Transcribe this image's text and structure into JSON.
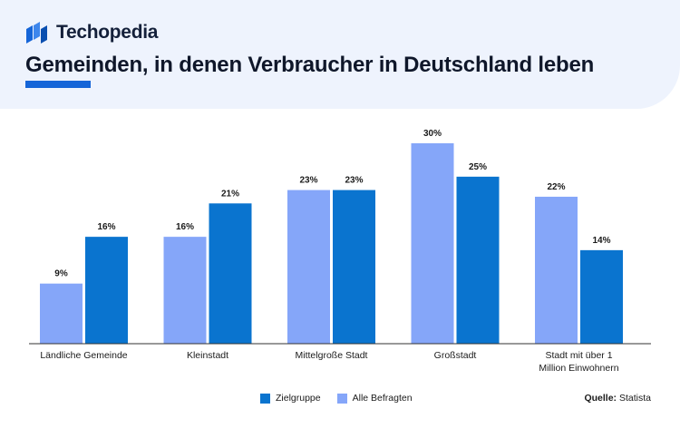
{
  "brand": {
    "name": "Techopedia"
  },
  "title": "Gemeinden, in denen Verbraucher in Deutschland leben",
  "source": {
    "label": "Quelle:",
    "value": "Statista"
  },
  "colors": {
    "zielgruppe": "#0a74cf",
    "alle_befragten": "#85a6f9",
    "accent": "#1565d8",
    "header_bg": "#eef3fd"
  },
  "chart_data": {
    "type": "bar",
    "categories": [
      "Ländliche Gemeinde",
      "Kleinstadt",
      "Mittelgroße Stadt",
      "Großstadt",
      "Stadt mit über 1 Million Einwohnern"
    ],
    "series": [
      {
        "name": "Alle Befragten",
        "values": [
          9,
          16,
          23,
          30,
          22
        ],
        "labels": [
          "9%",
          "16%",
          "23%",
          "30%",
          "22%"
        ],
        "color": "#85a6f9"
      },
      {
        "name": "Zielgruppe",
        "values": [
          16,
          21,
          23,
          25,
          14
        ],
        "labels": [
          "16%",
          "21%",
          "23%",
          "25%",
          "14%"
        ],
        "color": "#0a74cf"
      }
    ],
    "legend": [
      {
        "name": "Zielgruppe",
        "color": "#0a74cf"
      },
      {
        "name": "Alle Befragten",
        "color": "#85a6f9"
      }
    ],
    "ylim": [
      0,
      30
    ],
    "grid": false,
    "legend_position": "bottom-center",
    "title": "",
    "xlabel": "",
    "ylabel": ""
  }
}
